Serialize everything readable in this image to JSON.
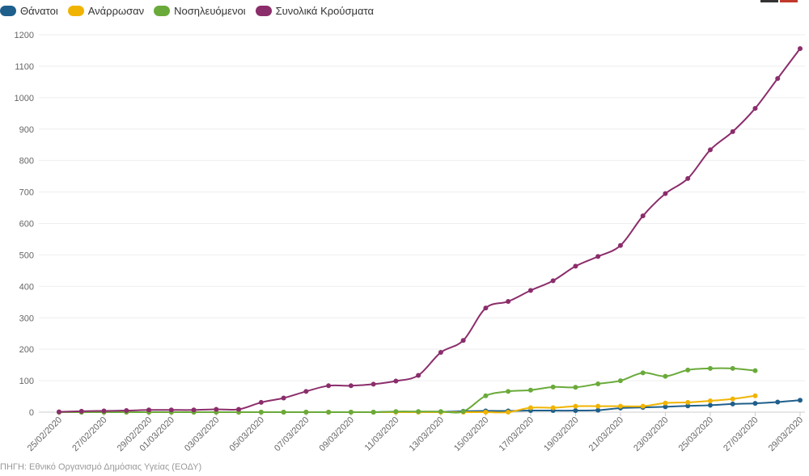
{
  "legend": [
    {
      "label": "Θάνατοι",
      "color": "#1f5f8b"
    },
    {
      "label": "Ανάρρωσαν",
      "color": "#f0b400"
    },
    {
      "label": "Νοσηλευόμενοι",
      "color": "#6aaa3a"
    },
    {
      "label": "Συνολικά Κρούσματα",
      "color": "#8b2d6b"
    }
  ],
  "source": "ΠΗΓΗ: Εθνικό Οργανισμό Δημόσιας Υγείας (ΕΟΔΥ)",
  "chart_data": {
    "type": "line",
    "title": "",
    "xlabel": "",
    "ylabel": "",
    "ylim": [
      0,
      1200
    ],
    "yticks": [
      0,
      100,
      200,
      300,
      400,
      500,
      600,
      700,
      800,
      900,
      1000,
      1100,
      1200
    ],
    "grid": true,
    "legend_position": "top-left",
    "x": [
      "25/02/2020",
      "26/02/2020",
      "27/02/2020",
      "28/02/2020",
      "29/02/2020",
      "01/03/2020",
      "02/03/2020",
      "03/03/2020",
      "04/03/2020",
      "05/03/2020",
      "06/03/2020",
      "07/03/2020",
      "08/03/2020",
      "09/03/2020",
      "10/03/2020",
      "11/03/2020",
      "12/03/2020",
      "13/03/2020",
      "14/03/2020",
      "15/03/2020",
      "16/03/2020",
      "17/03/2020",
      "18/03/2020",
      "19/03/2020",
      "20/03/2020",
      "21/03/2020",
      "22/03/2020",
      "23/03/2020",
      "24/03/2020",
      "25/03/2020",
      "26/03/2020",
      "27/03/2020",
      "28/03/2020",
      "29/03/2020"
    ],
    "x_tick_labels": [
      "25/02/2020",
      "27/02/2020",
      "29/02/2020",
      "01/03/2020",
      "03/03/2020",
      "05/03/2020",
      "07/03/2020",
      "09/03/2020",
      "11/03/2020",
      "13/03/2020",
      "15/03/2020",
      "17/03/2020",
      "19/03/2020",
      "21/03/2020",
      "23/03/2020",
      "25/03/2020",
      "27/03/2020",
      "29/03/2020"
    ],
    "series": [
      {
        "name": "Θάνατοι",
        "color": "#1f5f8b",
        "values": [
          0,
          0,
          0,
          0,
          0,
          0,
          0,
          0,
          0,
          0,
          0,
          0,
          0,
          0,
          0,
          1,
          1,
          1,
          3,
          4,
          4,
          5,
          5,
          5,
          6,
          13,
          15,
          17,
          20,
          22,
          26,
          28,
          32,
          38
        ]
      },
      {
        "name": "Ανάρρωσαν",
        "color": "#f0b400",
        "values": [
          0,
          0,
          0,
          0,
          0,
          0,
          0,
          0,
          0,
          0,
          0,
          0,
          0,
          0,
          0,
          0,
          0,
          0,
          0,
          0,
          0,
          14,
          14,
          19,
          19,
          19,
          19,
          29,
          31,
          36,
          42,
          52,
          null,
          null
        ]
      },
      {
        "name": "Νοσηλευόμενοι",
        "color": "#6aaa3a",
        "values": [
          0,
          0,
          0,
          0,
          0,
          0,
          0,
          0,
          0,
          0,
          0,
          0,
          0,
          0,
          0,
          2,
          2,
          2,
          2,
          52,
          66,
          70,
          80,
          79,
          90,
          100,
          125,
          114,
          134,
          139,
          139,
          132,
          null,
          null
        ]
      },
      {
        "name": "Συνολικά Κρούσματα",
        "color": "#8b2d6b",
        "values": [
          1,
          3,
          4,
          5,
          7,
          7,
          7,
          9,
          9,
          31,
          45,
          66,
          84,
          84,
          89,
          99,
          117,
          190,
          228,
          331,
          352,
          387,
          418,
          464,
          495,
          530,
          624,
          695,
          743,
          834,
          892,
          966,
          1061,
          1156
        ]
      }
    ]
  }
}
